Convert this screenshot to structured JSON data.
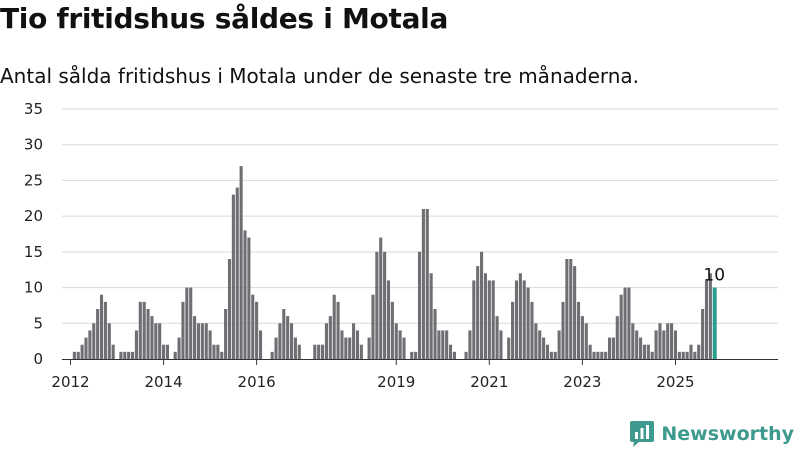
{
  "title": "Tio fritidshus såldes i Motala",
  "subtitle": "Antal sålda fritidshus i Motala under de senaste tre månaderna.",
  "brand": {
    "name": "Newsworthy",
    "icon": "bar-chart-logo-icon",
    "color": "#3e9a8e"
  },
  "chart_data": {
    "type": "bar",
    "title": "Tio fritidshus såldes i Motala",
    "subtitle": "Antal sålda fritidshus i Motala under de senaste tre månaderna.",
    "xlabel": "",
    "ylabel": "",
    "ylim": [
      0,
      35
    ],
    "yticks": [
      0,
      5,
      10,
      15,
      20,
      25,
      30,
      35
    ],
    "xticks": [
      2012,
      2014,
      2016,
      2019,
      2021,
      2023,
      2025
    ],
    "x_start": "2012-01",
    "x_step": "month",
    "grid": true,
    "legend": "none",
    "bar_color": "#6e6e73",
    "highlight_color": "#2a9d8f",
    "highlight_last": true,
    "last_label": "10",
    "values": [
      0,
      1,
      1,
      2,
      3,
      4,
      5,
      7,
      9,
      8,
      5,
      2,
      0,
      1,
      1,
      1,
      1,
      4,
      8,
      8,
      7,
      6,
      5,
      5,
      2,
      2,
      0,
      1,
      3,
      8,
      10,
      10,
      6,
      5,
      5,
      5,
      4,
      2,
      2,
      1,
      7,
      14,
      23,
      24,
      27,
      18,
      17,
      9,
      8,
      4,
      0,
      0,
      1,
      3,
      5,
      7,
      6,
      5,
      3,
      2,
      0,
      0,
      0,
      2,
      2,
      2,
      5,
      6,
      9,
      8,
      4,
      3,
      3,
      5,
      4,
      2,
      0,
      3,
      9,
      15,
      17,
      15,
      11,
      8,
      5,
      4,
      3,
      0,
      1,
      1,
      15,
      21,
      21,
      12,
      7,
      4,
      4,
      4,
      2,
      1,
      0,
      0,
      1,
      4,
      11,
      13,
      15,
      12,
      11,
      11,
      6,
      4,
      0,
      3,
      8,
      11,
      12,
      11,
      10,
      8,
      5,
      4,
      3,
      2,
      1,
      1,
      4,
      8,
      14,
      14,
      13,
      8,
      6,
      5,
      2,
      1,
      1,
      1,
      1,
      3,
      3,
      6,
      9,
      10,
      10,
      5,
      4,
      3,
      2,
      2,
      1,
      4,
      5,
      4,
      5,
      5,
      4,
      1,
      1,
      1,
      2,
      1,
      2,
      7,
      11,
      12,
      10
    ]
  }
}
